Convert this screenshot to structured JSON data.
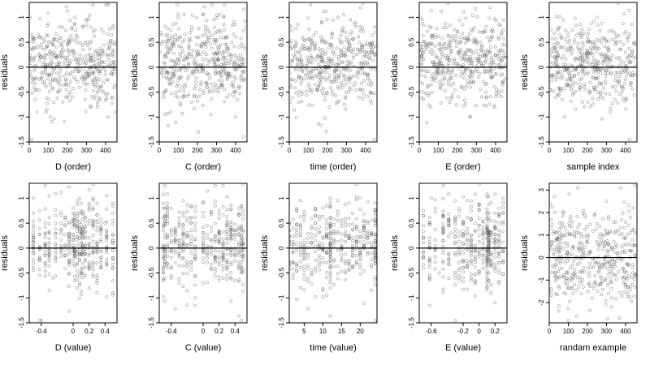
{
  "chart_data": [
    {
      "type": "scatter",
      "xlabel": "D (order)",
      "ylabel": "residuals",
      "xlim": [
        0,
        460
      ],
      "ylim": [
        -1.5,
        1.3
      ],
      "xticks": [
        0,
        100,
        200,
        300,
        400
      ],
      "yticks": [
        -1.5,
        -1.0,
        -0.5,
        0.0,
        0.5,
        1.0
      ],
      "ref_y": 0,
      "x_kind": "order",
      "y_kind": "res",
      "points": [
        [
          5,
          1.0
        ],
        [
          12,
          -1.45
        ],
        [
          20,
          0.5
        ],
        [
          30,
          0.2
        ],
        [
          40,
          -0.9
        ],
        [
          55,
          0.6
        ],
        [
          70,
          -0.3
        ],
        [
          90,
          0.4
        ],
        [
          110,
          -1.0
        ],
        [
          130,
          0.3
        ],
        [
          150,
          -0.5
        ],
        [
          175,
          0.8
        ],
        [
          200,
          0.2
        ],
        [
          225,
          -0.6
        ],
        [
          250,
          0.6
        ],
        [
          275,
          -0.2
        ],
        [
          300,
          0.85
        ],
        [
          320,
          -0.8
        ],
        [
          345,
          0.3
        ],
        [
          365,
          -0.4
        ],
        [
          390,
          0.7
        ],
        [
          410,
          1.28
        ],
        [
          430,
          -0.6
        ],
        [
          450,
          -0.9
        ]
      ]
    },
    {
      "type": "scatter",
      "xlabel": "C (order)",
      "ylabel": "residuals",
      "xlim": [
        0,
        460
      ],
      "ylim": [
        -1.5,
        1.3
      ],
      "xticks": [
        0,
        100,
        200,
        300,
        400
      ],
      "yticks": [
        -1.5,
        -1.0,
        -0.5,
        0.0,
        0.5,
        1.0
      ],
      "ref_y": 0,
      "x_kind": "order",
      "y_kind": "res",
      "points": [
        [
          8,
          0.7
        ],
        [
          25,
          -0.5
        ],
        [
          45,
          0.3
        ],
        [
          60,
          -0.9
        ],
        [
          80,
          0.5
        ],
        [
          100,
          1.0
        ],
        [
          120,
          -0.4
        ],
        [
          145,
          0.2
        ],
        [
          170,
          -0.7
        ],
        [
          195,
          0.6
        ],
        [
          220,
          -0.3
        ],
        [
          245,
          0.4
        ],
        [
          270,
          -0.95
        ],
        [
          290,
          0.8
        ],
        [
          310,
          -0.5
        ],
        [
          335,
          0.3
        ],
        [
          355,
          -0.6
        ],
        [
          380,
          0.5
        ],
        [
          400,
          -1.0
        ],
        [
          420,
          0.4
        ],
        [
          440,
          -1.4
        ],
        [
          455,
          0.8
        ]
      ]
    },
    {
      "type": "scatter",
      "xlabel": "time (order)",
      "ylabel": "residuals",
      "xlim": [
        0,
        460
      ],
      "ylim": [
        -1.5,
        1.3
      ],
      "xticks": [
        0,
        100,
        200,
        300,
        400
      ],
      "yticks": [
        -1.5,
        -1.0,
        -0.5,
        0.0,
        0.5,
        1.0
      ],
      "ref_y": 0,
      "x_kind": "order",
      "y_kind": "res",
      "points": [
        [
          10,
          -0.4
        ],
        [
          30,
          0.4
        ],
        [
          50,
          -0.7
        ],
        [
          70,
          0.6
        ],
        [
          95,
          0.2
        ],
        [
          115,
          -0.5
        ],
        [
          140,
          0.7
        ],
        [
          165,
          -0.3
        ],
        [
          185,
          0.5
        ],
        [
          210,
          -0.8
        ],
        [
          230,
          0.3
        ],
        [
          255,
          1.0
        ],
        [
          280,
          -0.4
        ],
        [
          300,
          0.6
        ],
        [
          325,
          -0.2
        ],
        [
          345,
          0.9
        ],
        [
          365,
          -0.6
        ],
        [
          385,
          1.28
        ],
        [
          405,
          0.3
        ],
        [
          425,
          -0.5
        ],
        [
          445,
          -1.45
        ],
        [
          455,
          0.7
        ]
      ]
    },
    {
      "type": "scatter",
      "xlabel": "E (order)",
      "ylabel": "residuals",
      "xlim": [
        0,
        460
      ],
      "ylim": [
        -1.5,
        1.3
      ],
      "xticks": [
        0,
        100,
        200,
        300,
        400
      ],
      "yticks": [
        -1.5,
        -1.0,
        -0.5,
        0.0,
        0.5,
        1.0
      ],
      "ref_y": 0,
      "x_kind": "order",
      "y_kind": "res",
      "points": [
        [
          6,
          1.0
        ],
        [
          20,
          -0.5
        ],
        [
          40,
          0.4
        ],
        [
          60,
          -0.8
        ],
        [
          85,
          0.6
        ],
        [
          105,
          -0.3
        ],
        [
          125,
          0.2
        ],
        [
          150,
          1.28
        ],
        [
          170,
          -0.6
        ],
        [
          195,
          0.5
        ],
        [
          220,
          -0.4
        ],
        [
          245,
          0.3
        ],
        [
          265,
          -1.0
        ],
        [
          285,
          0.5
        ],
        [
          310,
          -0.2
        ],
        [
          330,
          0.7
        ],
        [
          350,
          -0.5
        ],
        [
          375,
          0.4
        ],
        [
          395,
          -0.8
        ],
        [
          415,
          0.6
        ],
        [
          435,
          -0.3
        ],
        [
          450,
          0.2
        ]
      ]
    },
    {
      "type": "scatter",
      "xlabel": "sample index",
      "ylabel": "residuals",
      "xlim": [
        0,
        460
      ],
      "ylim": [
        -1.5,
        1.3
      ],
      "xticks": [
        0,
        100,
        200,
        300,
        400
      ],
      "yticks": [
        -1.5,
        -1.0,
        -0.5,
        0.0,
        0.5,
        1.0
      ],
      "ref_y": 0,
      "x_kind": "order",
      "y_kind": "res",
      "points": [
        [
          12,
          0.3
        ],
        [
          35,
          -0.6
        ],
        [
          55,
          0.8
        ],
        [
          80,
          -1.0
        ],
        [
          100,
          0.5
        ],
        [
          125,
          -0.3
        ],
        [
          150,
          0.4
        ],
        [
          175,
          -0.7
        ],
        [
          200,
          0.6
        ],
        [
          225,
          -0.2
        ],
        [
          250,
          1.0
        ],
        [
          270,
          -0.5
        ],
        [
          295,
          0.2
        ],
        [
          320,
          -0.9
        ],
        [
          340,
          0.7
        ],
        [
          360,
          1.28
        ],
        [
          380,
          -0.4
        ],
        [
          400,
          0.3
        ],
        [
          420,
          -1.45
        ],
        [
          445,
          0.5
        ]
      ]
    },
    {
      "type": "scatter",
      "xlabel": "D (value)",
      "ylabel": "residuals",
      "xlim": [
        -0.55,
        0.55
      ],
      "ylim": [
        -1.5,
        1.3
      ],
      "xticks": [
        -0.4,
        0.0,
        0.2,
        0.4
      ],
      "yticks": [
        -1.5,
        -1.0,
        -0.5,
        0.0,
        0.5,
        1.0
      ],
      "ref_y": 0,
      "x_kind": "value",
      "y_kind": "res",
      "points": [
        [
          -0.5,
          1.0
        ],
        [
          -0.4,
          -1.45
        ],
        [
          -0.35,
          0.3
        ],
        [
          -0.25,
          -0.6
        ],
        [
          -0.15,
          0.5
        ],
        [
          -0.05,
          -0.3
        ],
        [
          0.0,
          0.7
        ],
        [
          0.05,
          -0.8
        ],
        [
          0.1,
          0.9
        ],
        [
          0.15,
          0.2
        ],
        [
          0.2,
          -0.4
        ],
        [
          0.25,
          1.28
        ],
        [
          0.3,
          -0.7
        ],
        [
          0.4,
          0.5
        ],
        [
          0.5,
          -0.9
        ]
      ]
    },
    {
      "type": "scatter",
      "xlabel": "C (value)",
      "ylabel": "residuals",
      "xlim": [
        -0.55,
        0.55
      ],
      "ylim": [
        -1.5,
        1.3
      ],
      "xticks": [
        -0.4,
        0.0,
        0.2,
        0.4
      ],
      "yticks": [
        -1.5,
        -1.0,
        -0.5,
        0.0,
        0.5,
        1.0
      ],
      "ref_y": 0,
      "x_kind": "value",
      "y_kind": "res",
      "points": [
        [
          -0.5,
          -0.5
        ],
        [
          -0.48,
          0.8
        ],
        [
          -0.45,
          0.2
        ],
        [
          -0.3,
          -0.7
        ],
        [
          -0.2,
          0.6
        ],
        [
          -0.1,
          -1.0
        ],
        [
          0.0,
          0.3
        ],
        [
          0.1,
          -0.4
        ],
        [
          0.2,
          0.6
        ],
        [
          0.3,
          -0.3
        ],
        [
          0.45,
          0.8
        ],
        [
          0.48,
          -1.45
        ],
        [
          0.5,
          1.28
        ]
      ]
    },
    {
      "type": "scatter",
      "xlabel": "time (value)",
      "ylabel": "residuals",
      "xlim": [
        1,
        24.5
      ],
      "ylim": [
        -1.5,
        1.3
      ],
      "xticks": [
        5,
        10,
        15,
        20
      ],
      "yticks": [
        -1.5,
        -1.0,
        -0.5,
        0.0,
        0.5,
        1.0
      ],
      "ref_y": 0,
      "x_kind": "value",
      "y_kind": "res",
      "points": [
        [
          2,
          -0.3
        ],
        [
          4,
          0.4
        ],
        [
          6,
          -0.6
        ],
        [
          8,
          0.5
        ],
        [
          10,
          -0.2
        ],
        [
          12,
          1.0
        ],
        [
          12,
          -0.8
        ],
        [
          14,
          0.3
        ],
        [
          16,
          -0.5
        ],
        [
          18,
          0.7
        ],
        [
          19,
          1.28
        ],
        [
          20,
          -0.4
        ],
        [
          22,
          0.5
        ],
        [
          24,
          -1.45
        ]
      ]
    },
    {
      "type": "scatter",
      "xlabel": "E (value)",
      "ylabel": "residuals",
      "xlim": [
        -0.75,
        0.35
      ],
      "ylim": [
        -1.5,
        1.3
      ],
      "xticks": [
        -0.6,
        -0.2,
        0.0,
        0.2
      ],
      "yticks": [
        -1.5,
        -1.0,
        -0.5,
        0.0,
        0.5,
        1.0
      ],
      "ref_y": 0,
      "x_kind": "value",
      "y_kind": "res",
      "points": [
        [
          -0.7,
          0.2
        ],
        [
          -0.6,
          1.0
        ],
        [
          -0.5,
          -0.5
        ],
        [
          -0.35,
          0.3
        ],
        [
          -0.3,
          -1.45
        ],
        [
          -0.2,
          0.5
        ],
        [
          -0.1,
          -0.6
        ],
        [
          0.0,
          1.28
        ],
        [
          0.05,
          -0.3
        ],
        [
          0.1,
          0.6
        ],
        [
          0.15,
          -0.9
        ],
        [
          0.2,
          0.4
        ],
        [
          0.25,
          -0.5
        ],
        [
          0.3,
          0.7
        ]
      ]
    },
    {
      "type": "scatter",
      "xlabel": "randam example",
      "ylabel": "residuals",
      "xlim": [
        0,
        460
      ],
      "ylim": [
        -2.9,
        3.3
      ],
      "xticks": [
        0,
        100,
        200,
        300,
        400
      ],
      "yticks": [
        -2,
        -1,
        0,
        1,
        2,
        3
      ],
      "ref_y": 0,
      "x_kind": "order",
      "y_kind": "rand",
      "points": [
        [
          10,
          -1.5
        ],
        [
          30,
          2.0
        ],
        [
          55,
          -0.5
        ],
        [
          80,
          1.0
        ],
        [
          100,
          -2.8
        ],
        [
          125,
          0.5
        ],
        [
          150,
          3.1
        ],
        [
          175,
          -1.0
        ],
        [
          200,
          0.8
        ],
        [
          225,
          -1.8
        ],
        [
          250,
          1.5
        ],
        [
          275,
          -0.3
        ],
        [
          300,
          2.5
        ],
        [
          325,
          -2.2
        ],
        [
          350,
          0.6
        ],
        [
          375,
          3.1
        ],
        [
          400,
          -1.2
        ],
        [
          425,
          1.8
        ],
        [
          450,
          -0.8
        ]
      ]
    }
  ]
}
